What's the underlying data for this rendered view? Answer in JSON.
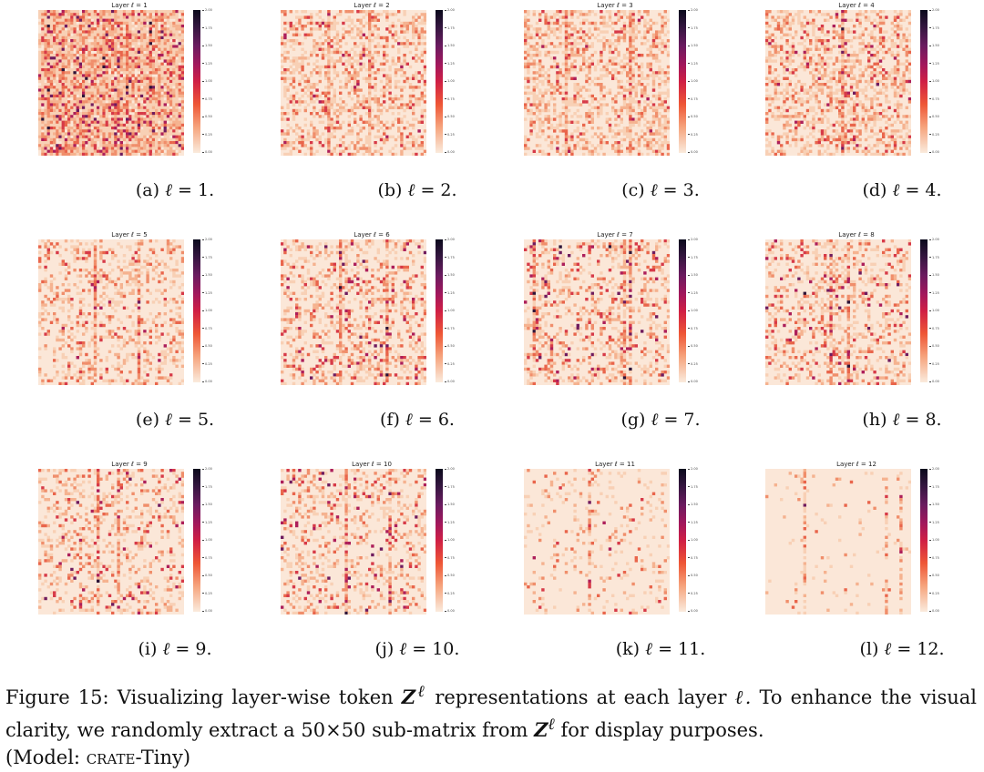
{
  "panels": [
    {
      "title": "Layer ℓ = 1",
      "tag": "(a)",
      "value": "1.",
      "density": 0.92,
      "intensity": 0.55,
      "stripes": [
        3,
        8,
        15,
        22,
        30,
        38
      ]
    },
    {
      "title": "Layer ℓ = 2",
      "tag": "(b)",
      "value": "2.",
      "density": 0.45,
      "intensity": 0.35,
      "stripes": [
        16,
        30
      ]
    },
    {
      "title": "Layer ℓ = 3",
      "tag": "(c)",
      "value": "3.",
      "density": 0.45,
      "intensity": 0.33,
      "stripes": [
        14,
        36
      ]
    },
    {
      "title": "Layer ℓ = 4",
      "tag": "(d)",
      "value": "4.",
      "density": 0.45,
      "intensity": 0.4,
      "stripes": [
        26
      ]
    },
    {
      "title": "Layer ℓ = 5",
      "tag": "(e)",
      "value": "5.",
      "density": 0.3,
      "intensity": 0.35,
      "stripes": [
        19,
        34
      ]
    },
    {
      "title": "Layer ℓ = 6",
      "tag": "(f)",
      "value": "6.",
      "density": 0.35,
      "intensity": 0.5,
      "stripes": [
        36,
        20
      ]
    },
    {
      "title": "Layer ℓ = 7",
      "tag": "(g)",
      "value": "7.",
      "density": 0.33,
      "intensity": 0.55,
      "stripes": [
        3,
        34,
        36
      ]
    },
    {
      "title": "Layer ℓ = 8",
      "tag": "(h)",
      "value": "8.",
      "density": 0.3,
      "intensity": 0.5,
      "stripes": [
        22,
        28
      ]
    },
    {
      "title": "Layer ℓ = 9",
      "tag": "(i)",
      "value": "9.",
      "density": 0.25,
      "intensity": 0.5,
      "stripes": [
        20,
        27
      ]
    },
    {
      "title": "Layer ℓ = 10",
      "tag": "(j)",
      "value": "10.",
      "density": 0.28,
      "intensity": 0.55,
      "stripes": [
        22,
        37
      ]
    },
    {
      "title": "Layer ℓ = 11",
      "tag": "(k)",
      "value": "11.",
      "density": 0.1,
      "intensity": 0.35,
      "stripes": [
        22
      ]
    },
    {
      "title": "Layer ℓ = 12",
      "tag": "(l)",
      "value": "12.",
      "density": 0.04,
      "intensity": 0.2,
      "stripes": [
        13,
        41,
        46
      ]
    }
  ],
  "colorbar_ticks": [
    "2.00",
    "1.75",
    "1.50",
    "1.25",
    "1.00",
    "0.75",
    "0.50",
    "0.25",
    "0.00"
  ],
  "caption": {
    "label": "Figure 15:",
    "text_1": "Visualizing layer-wise token",
    "symbol": "Z",
    "superscript": "ℓ",
    "text_2": "representations at each layer",
    "layer_symbol": "ℓ.",
    "text_3": "To enhance the visual clarity, we randomly extract a 50×50 sub-matrix from",
    "text_4": "for display purposes.",
    "model_prefix": "(Model:",
    "model_name": "crate",
    "model_suffix": "-Tiny)"
  }
}
